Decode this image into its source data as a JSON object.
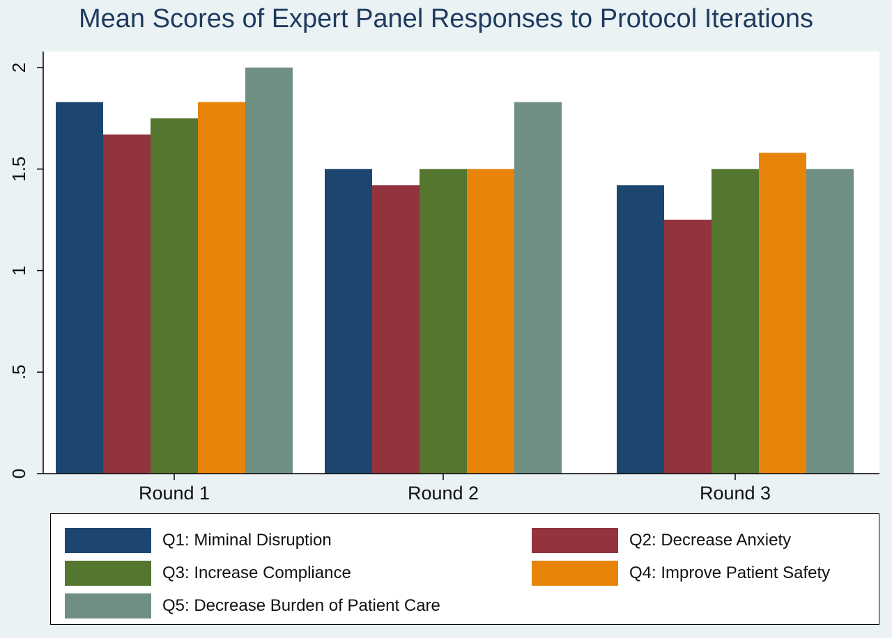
{
  "chart_data": {
    "type": "bar",
    "title": "Mean Scores of Expert Panel Responses to Protocol Iterations",
    "xlabel": "",
    "ylabel": "",
    "categories": [
      "Round 1",
      "Round 2",
      "Round 3"
    ],
    "ylim": [
      0,
      2
    ],
    "yticks": [
      {
        "value": 0,
        "label": "0"
      },
      {
        "value": 0.5,
        "label": ".5"
      },
      {
        "value": 1,
        "label": "1"
      },
      {
        "value": 1.5,
        "label": "1.5"
      },
      {
        "value": 2,
        "label": "2"
      }
    ],
    "grid": false,
    "legend_position": "bottom",
    "series": [
      {
        "name": "Q1: Miminal Disruption",
        "color": "#1c4670",
        "values": [
          1.83,
          1.5,
          1.42
        ]
      },
      {
        "name": "Q2: Decrease Anxiety",
        "color": "#92333d",
        "values": [
          1.67,
          1.42,
          1.25
        ]
      },
      {
        "name": "Q3: Increase Compliance",
        "color": "#54762e",
        "values": [
          1.75,
          1.5,
          1.5
        ]
      },
      {
        "name": "Q4: Improve Patient Safety",
        "color": "#e8840a",
        "values": [
          1.83,
          1.5,
          1.58
        ]
      },
      {
        "name": "Q5: Decrease Burden of Patient Care",
        "color": "#6f8f82",
        "values": [
          2.0,
          1.83,
          1.5
        ]
      }
    ]
  }
}
